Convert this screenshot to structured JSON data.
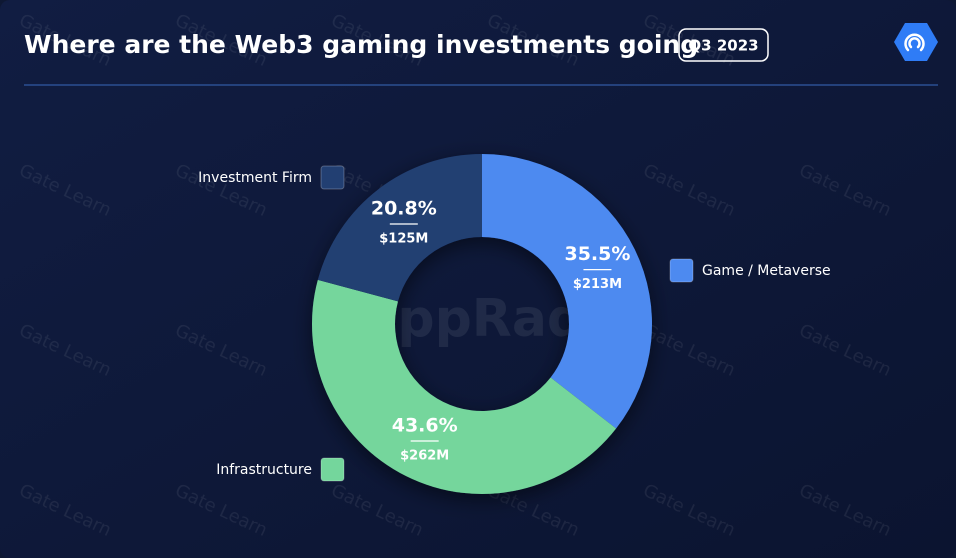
{
  "chart_data": {
    "type": "donut",
    "title": "Where are the Web3 gaming investments going",
    "subtitle": "Q3 2023",
    "watermarks": [
      "Gate Learn",
      "DappRadar"
    ],
    "categories": [
      "Game / Metaverse",
      "Infrastructure",
      "Investment Firm"
    ],
    "values": [
      35.5,
      43.6,
      20.8
    ],
    "value_labels": [
      "35.5%",
      "43.6%",
      "20.8%"
    ],
    "amounts": [
      213,
      262,
      125
    ],
    "amount_labels": [
      "$213M",
      "$262M",
      "$125M"
    ],
    "colors": [
      "#4d8af0",
      "#74d69c",
      "#223f72"
    ]
  }
}
